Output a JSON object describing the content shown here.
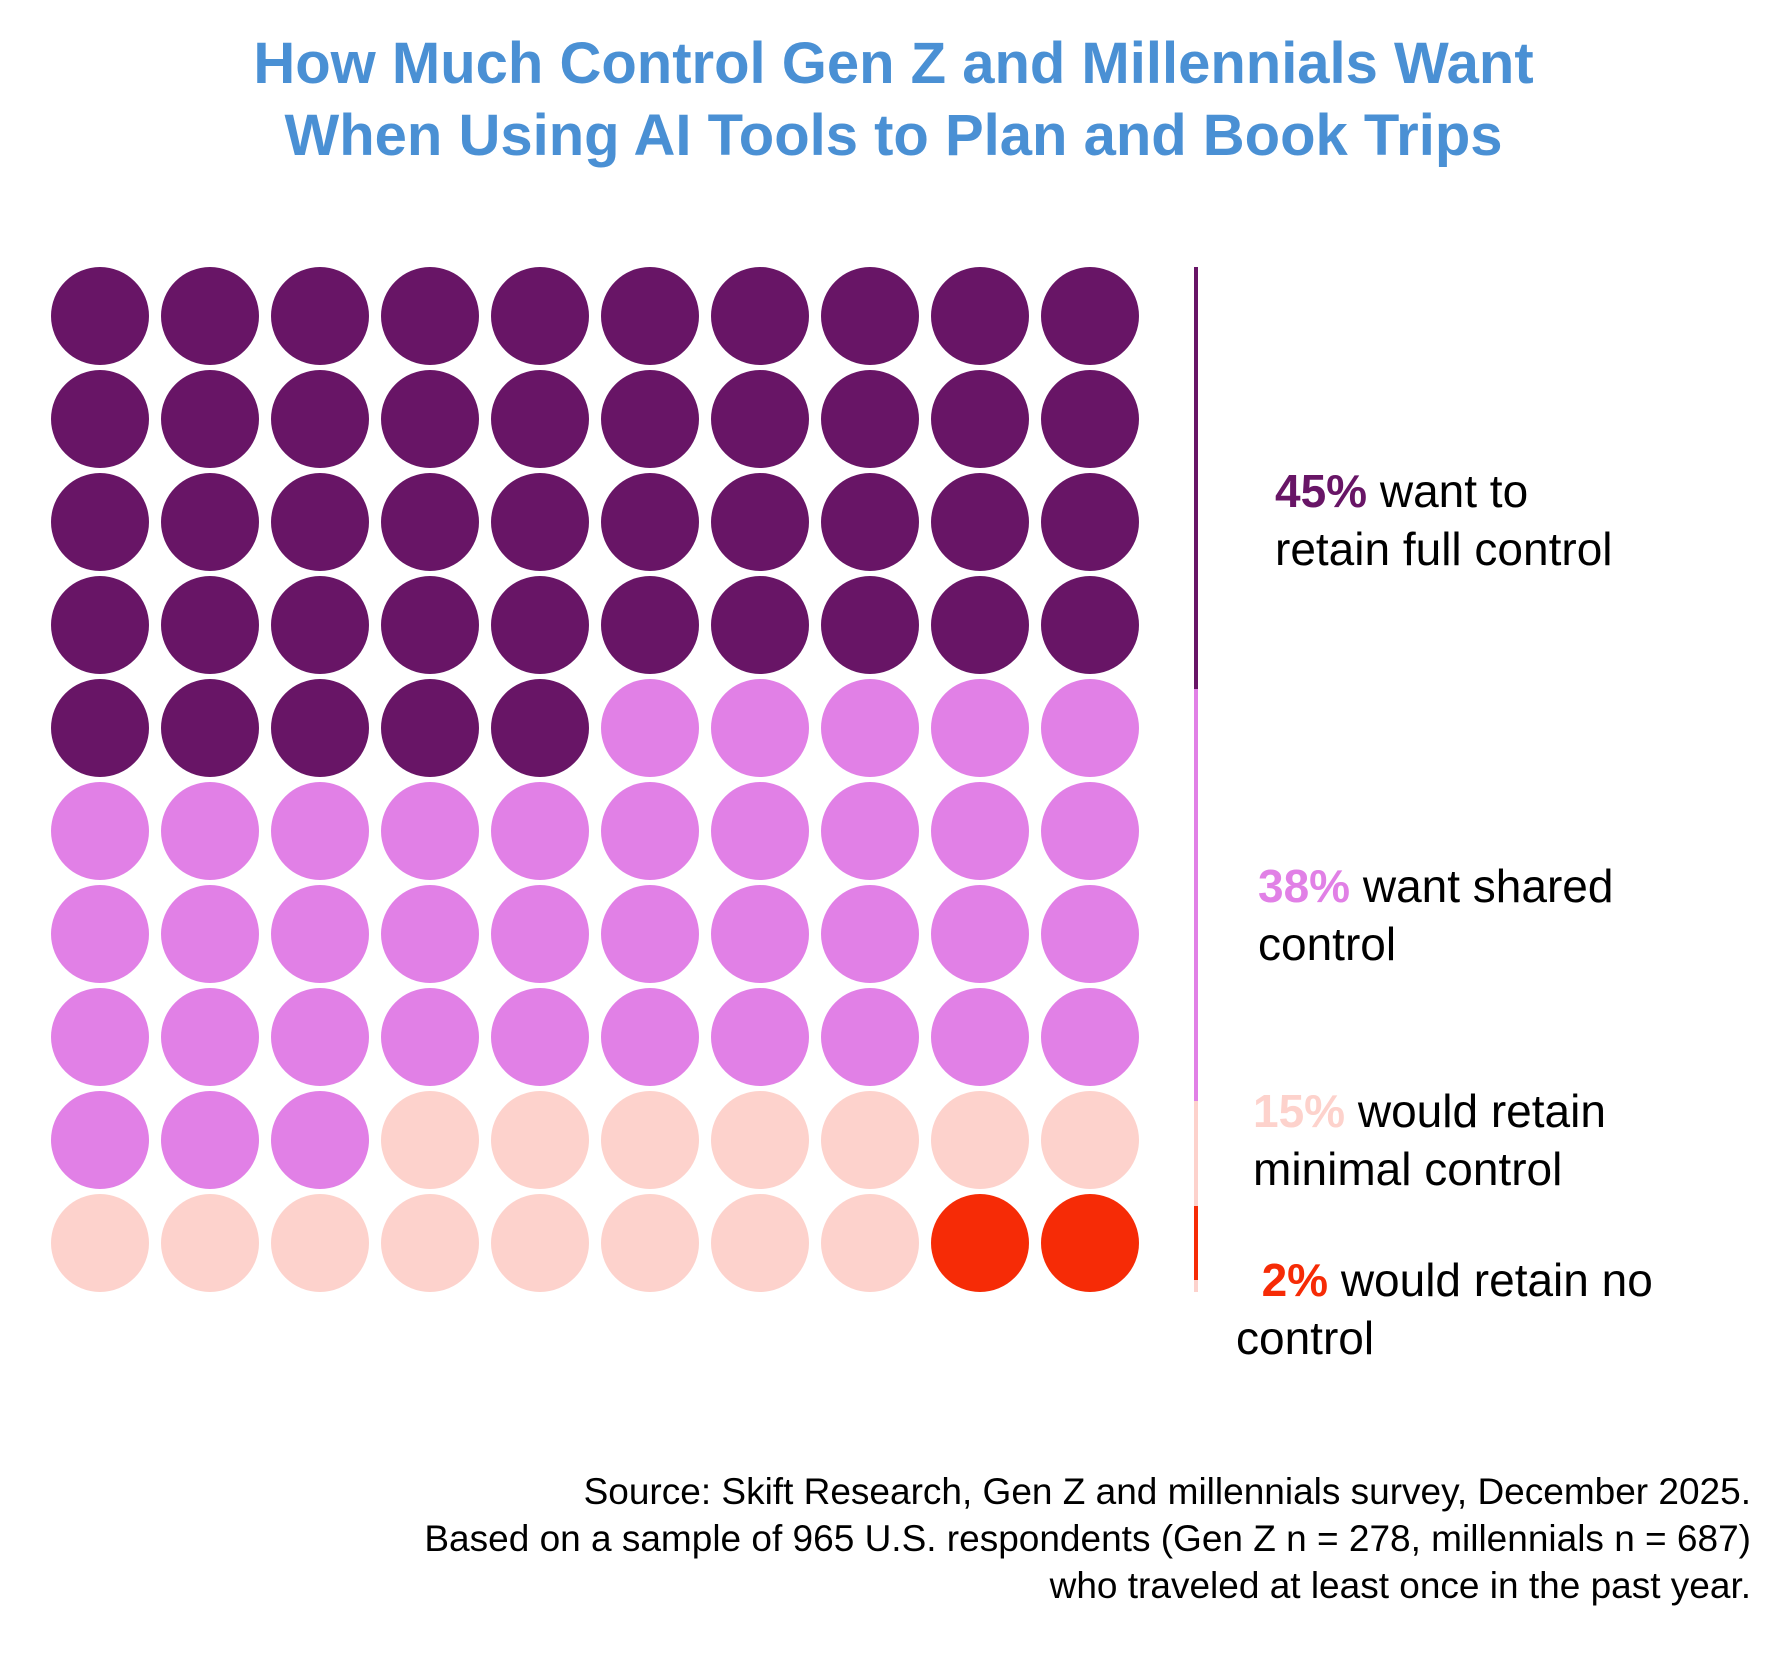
{
  "title": {
    "line1": "How Much Control Gen Z and Millennials Want",
    "line2": "When Using AI Tools to Plan and Book Trips"
  },
  "chart_data": {
    "type": "waffle",
    "title": "How Much Control Gen Z and Millennials Want When Using AI Tools to Plan and Book Trips",
    "grid": {
      "rows": 10,
      "cols": 10,
      "total": 100
    },
    "categories": [
      {
        "name": "retain full control",
        "value": 45,
        "color": "#681566",
        "pct": "45%",
        "text_line1": "want to",
        "text_line2": "retain full control"
      },
      {
        "name": "shared control",
        "value": 38,
        "color": "#e180e6",
        "pct": "38%",
        "text_line1": "want shared",
        "text_line2": "control"
      },
      {
        "name": "minimal control",
        "value": 15,
        "color": "#fdd2cc",
        "pct": "15%",
        "text_line1": "would retain",
        "text_line2": "minimal control"
      },
      {
        "name": "no control",
        "value": 2,
        "color": "#f62b06",
        "pct": "2%",
        "text_line1": "would retain no",
        "text_line2": "control"
      }
    ],
    "legend_placement": "right"
  },
  "source": {
    "line1": "Source: Skift Research, Gen Z and millennials survey, December 2025.",
    "line2": "Based on a sample of 965 U.S. respondents (Gen Z n = 278, millennials n = 687)",
    "line3": "who traveled at least once in the past year."
  }
}
